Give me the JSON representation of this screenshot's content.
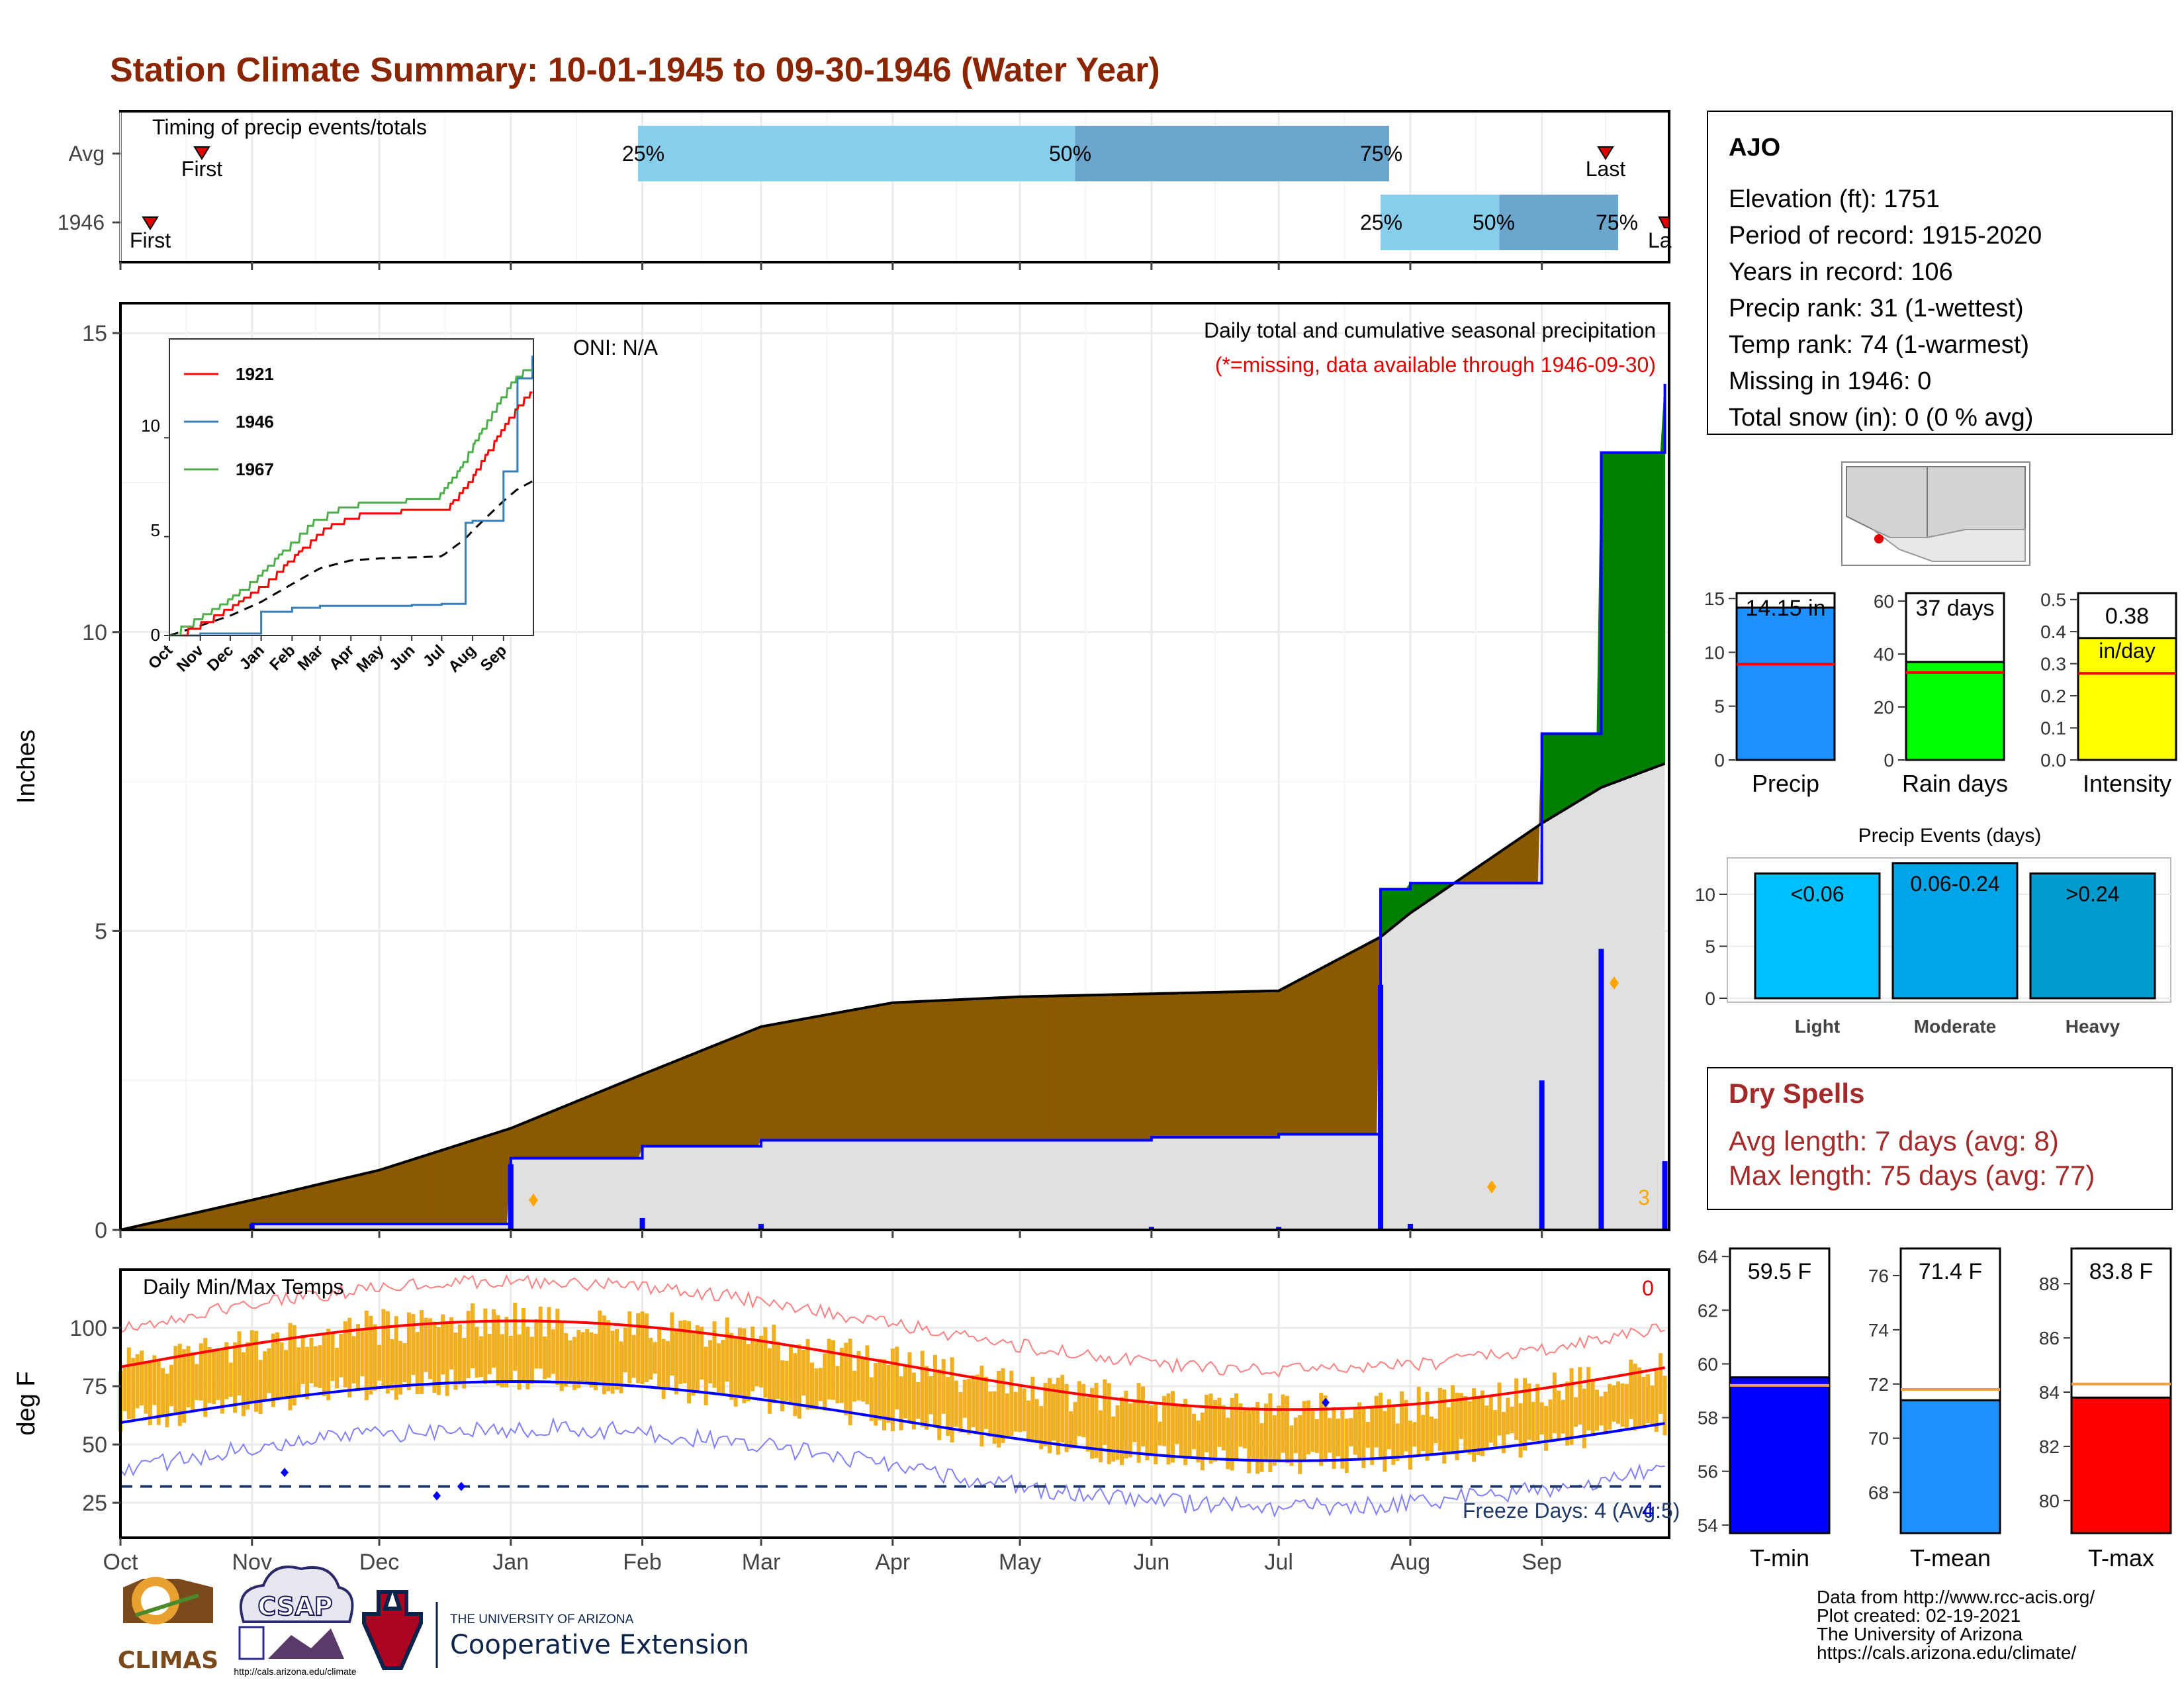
{
  "title": "Station Climate Summary: 10-01-1945 to 09-30-1946 (Water Year)",
  "colors": {
    "title": "#8B2500",
    "brown": "#8B5A00",
    "green": "#008000",
    "blue": "#0000FF",
    "gray_fill": "#E0E0E0",
    "timing_light": "#87CEEB",
    "timing_dark": "#6CA6CD",
    "precip_bar": "#1E90FF",
    "raindays_bar": "#00FF00",
    "intensity_bar": "#FFFF00",
    "events_light": "#00BFFF",
    "events_mod": "#00A5E8",
    "events_heavy": "#009ACD",
    "temp_bar": "#F0B020",
    "avg_line": "#FF0000",
    "dry_spells": "#A52A2A",
    "tmin_bar": "#0000FF",
    "tmean_bar": "#1E90FF",
    "tmax_bar": "#FF0000",
    "norm_line": "#F0A040"
  },
  "months": [
    "Oct",
    "Nov",
    "Dec",
    "Jan",
    "Feb",
    "Mar",
    "Apr",
    "May",
    "Jun",
    "Jul",
    "Aug",
    "Sep"
  ],
  "timing": {
    "label": "Timing of precip events/totals",
    "rows": [
      "Avg",
      "1946"
    ],
    "first_label": "First",
    "last_label": "Last",
    "last_label_cut": "La",
    "pct_labels": [
      "25%",
      "50%",
      "75%"
    ],
    "avg": {
      "first": "Oct 30",
      "last": "Sep 13",
      "p25": "Jan 31",
      "p50": "May 14",
      "p75": "Jul 27"
    },
    "y1946": {
      "first": "Oct 6",
      "last": "Sep 30",
      "p25": "Jul 25",
      "p50": "Aug 22",
      "p75": "Sep 19"
    }
  },
  "station": {
    "name": "AJO",
    "lines": [
      "Elevation (ft): 1751",
      "Period of record: 1915-2020",
      "Years in record: 106",
      "Precip rank: 31 (1-wettest)",
      "Temp rank: 74 (1-warmest)",
      "Missing in 1946: 0",
      "Total snow (in): 0 (0 % avg)"
    ]
  },
  "precip_panel": {
    "ylabel": "Inches",
    "oni": "ONI: N/A",
    "caption": "Daily total and cumulative seasonal precipitation",
    "missing_note": "(*=missing, data available through 1946-09-30)",
    "count_label": "3",
    "yticks": [
      "0",
      "5",
      "10",
      "15"
    ]
  },
  "inset": {
    "years": [
      "1921",
      "1946",
      "1967"
    ],
    "colors": [
      "#FF0000",
      "#377EB8",
      "#4DAF4A"
    ],
    "yticks": [
      "0",
      "5",
      "10"
    ]
  },
  "summary_bars": {
    "precip": {
      "label": "Precip",
      "value": 14.15,
      "value_text": "14.15 in",
      "avg": 8.9,
      "yticks": [
        "0",
        "5",
        "10",
        "15"
      ]
    },
    "rain_days": {
      "label": "Rain days",
      "value": 37,
      "value_text": "37 days",
      "avg": 33,
      "yticks": [
        "0",
        "20",
        "40",
        "60"
      ]
    },
    "intensity": {
      "label": "Intensity",
      "value": 0.38,
      "value_text": "0.38",
      "unit": "in/day",
      "avg": 0.27,
      "yticks": [
        "0.0",
        "0.1",
        "0.2",
        "0.3",
        "0.4",
        "0.5"
      ]
    }
  },
  "events": {
    "title": "Precip Events (days)",
    "bars": [
      {
        "label": "Light",
        "range": "<0.06",
        "value": 12
      },
      {
        "label": "Moderate",
        "range": "0.06-0.24",
        "value": 13
      },
      {
        "label": "Heavy",
        "range": ">0.24",
        "value": 12
      }
    ],
    "yticks": [
      "0",
      "5",
      "10"
    ]
  },
  "dry_spells": {
    "title": "Dry Spells",
    "avg_length": "Avg length: 7 days (avg: 8)",
    "max_length": "Max length: 75 days (avg: 77)"
  },
  "temp_panel": {
    "title": "Daily Min/Max Temps",
    "ylabel": "deg F",
    "freeze": "Freeze Days: 4 (Avg:5)",
    "count_top": "0",
    "count_bottom": "4",
    "yticks": [
      "25",
      "50",
      "75",
      "100"
    ]
  },
  "temp_bars": {
    "tmin": {
      "label": "T-min",
      "value": 59.5,
      "value_text": "59.5 F",
      "avg": 59.2,
      "yticks": [
        "54",
        "56",
        "58",
        "60",
        "62",
        "64"
      ]
    },
    "tmean": {
      "label": "T-mean",
      "value": 71.4,
      "value_text": "71.4 F",
      "avg": 71.8,
      "yticks": [
        "68",
        "70",
        "72",
        "74",
        "76"
      ]
    },
    "tmax": {
      "label": "T-max",
      "value": 83.8,
      "value_text": "83.8 F",
      "avg": 84.3,
      "yticks": [
        "80",
        "82",
        "84",
        "86",
        "88"
      ]
    }
  },
  "footer": {
    "lines": [
      "Data from http://www.rcc-acis.org/",
      "Plot created: 02-19-2021",
      "The University of Arizona",
      "https://cals.arizona.edu/climate/"
    ],
    "climas": "CLIMAS",
    "csap": "CSAP",
    "csap_url": "http://cals.arizona.edu/climate",
    "ua_small": "THE UNIVERSITY OF ARIZONA",
    "ua_big": "Cooperative Extension"
  },
  "chart_data": {
    "type": "area",
    "title": "Daily total and cumulative seasonal precipitation",
    "ylabel": "Inches",
    "ylim": [
      0,
      15.5
    ],
    "x": [
      "1945-10-01",
      "1945-11-01",
      "1945-12-01",
      "1946-01-01",
      "1946-02-01",
      "1946-03-01",
      "1946-04-01",
      "1946-05-01",
      "1946-06-01",
      "1946-07-01",
      "1946-07-25",
      "1946-08-01",
      "1946-09-01",
      "1946-09-15",
      "1946-09-30"
    ],
    "series": [
      {
        "name": "1946",
        "values": [
          0.0,
          0.1,
          0.1,
          1.2,
          1.4,
          1.5,
          1.5,
          1.5,
          1.55,
          1.6,
          5.7,
          5.8,
          8.3,
          13.0,
          14.15
        ]
      },
      {
        "name": "",
        "values": [
          0.0,
          0.5,
          1.0,
          1.7,
          2.6,
          3.4,
          3.8,
          3.9,
          3.95,
          4.0,
          4.9,
          5.3,
          6.8,
          7.4,
          7.8
        ]
      }
    ]
  }
}
